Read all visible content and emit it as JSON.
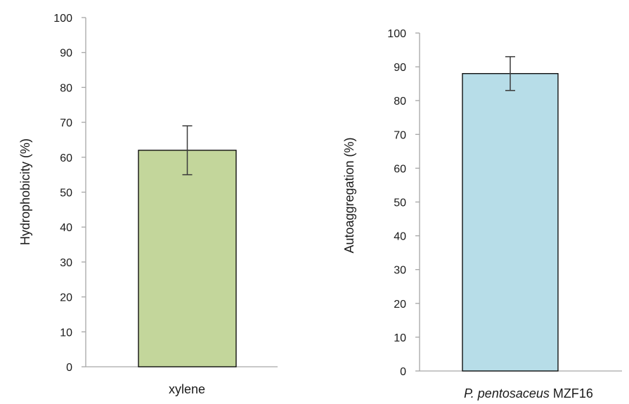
{
  "chart_data": [
    {
      "type": "bar",
      "categories": [
        "xylene"
      ],
      "values": [
        62
      ],
      "error": [
        7
      ],
      "ylabel": "Hydrophobicity  (%)",
      "xlabel": "",
      "ylim": [
        0,
        100
      ],
      "yticks": [
        0,
        10,
        20,
        30,
        40,
        50,
        60,
        70,
        80,
        90,
        100
      ],
      "grid": false,
      "bar_color": "#c3d69b"
    },
    {
      "type": "bar",
      "categories": [
        "P. pentosaceus MZF16"
      ],
      "category_parts": {
        "italic": "P. pentosaceus",
        "normal": "MZF16"
      },
      "values": [
        88
      ],
      "error": [
        5
      ],
      "ylabel": "Autoaggregation  (%)",
      "xlabel": "",
      "ylim": [
        0,
        100
      ],
      "yticks": [
        0,
        10,
        20,
        30,
        40,
        50,
        60,
        70,
        80,
        90,
        100
      ],
      "grid": false,
      "bar_color": "#b7dde8"
    }
  ]
}
